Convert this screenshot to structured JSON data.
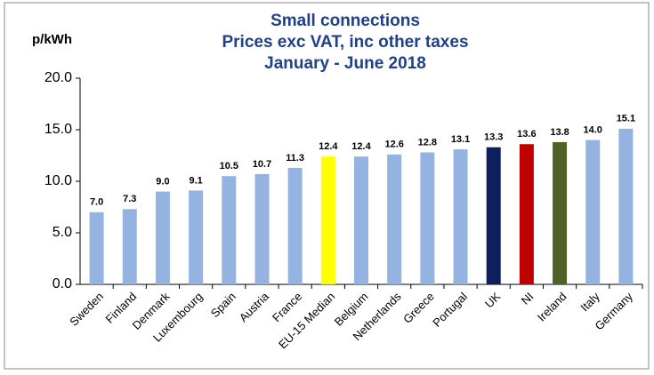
{
  "chart_data": {
    "type": "bar",
    "title": [
      "Small connections",
      "Prices exc VAT, inc other taxes",
      "January - June 2018"
    ],
    "y_label": "p/kWh",
    "categories": [
      "Sweden",
      "Finland",
      "Denmark",
      "Luxembourg",
      "Spain",
      "Austria",
      "France",
      "EU-15 Median",
      "Belgium",
      "Netherlands",
      "Greece",
      "Portugal",
      "UK",
      "NI",
      "Ireland",
      "Italy",
      "Germany"
    ],
    "values": [
      7.0,
      7.3,
      9.0,
      9.1,
      10.5,
      10.7,
      11.3,
      12.4,
      12.4,
      12.6,
      12.8,
      13.1,
      13.3,
      13.6,
      13.8,
      14.0,
      15.1
    ],
    "value_labels": [
      "7.0",
      "7.3",
      "9.0",
      "9.1",
      "10.5",
      "10.7",
      "11.3",
      "12.4",
      "12.4",
      "12.6",
      "12.8",
      "13.1",
      "13.3",
      "13.6",
      "13.8",
      "14.0",
      "15.1"
    ],
    "colors": [
      "#95b3e0",
      "#95b3e0",
      "#95b3e0",
      "#95b3e0",
      "#95b3e0",
      "#95b3e0",
      "#95b3e0",
      "#ffff00",
      "#95b3e0",
      "#95b3e0",
      "#95b3e0",
      "#95b3e0",
      "#0d1f5c",
      "#c00000",
      "#4f6228",
      "#95b3e0",
      "#95b3e0"
    ],
    "ylim": [
      0,
      20
    ],
    "yticks": [
      {
        "value": 0,
        "label": "0.0"
      },
      {
        "value": 5,
        "label": "5.0"
      },
      {
        "value": 10,
        "label": "10.0"
      },
      {
        "value": 15,
        "label": "15.0"
      },
      {
        "value": 20,
        "label": "20.0"
      }
    ],
    "grid": false
  }
}
